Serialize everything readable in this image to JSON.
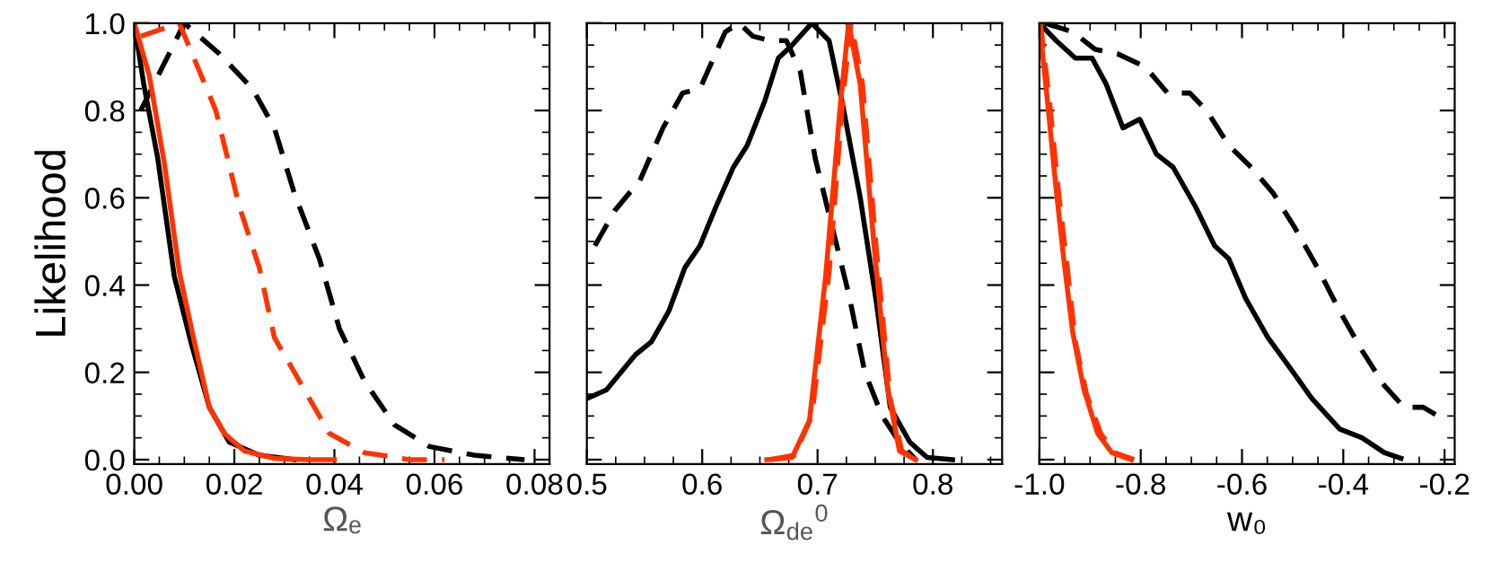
{
  "chart_data": [
    {
      "type": "line",
      "xlabel": "Ωₑ",
      "ylabel": "Likelihood",
      "xlim": [
        0,
        0.083
      ],
      "ylim": [
        -0.01,
        1.0
      ],
      "xticks": [
        {
          "value": 0,
          "label": "0.00"
        },
        0.02,
        0.04,
        0.06,
        0.08
      ],
      "yticks": [
        {
          "value": 0,
          "label": "0.0"
        },
        0.2,
        0.4,
        0.6,
        0.8,
        {
          "value": 1,
          "label": "1.0"
        }
      ],
      "grid": false,
      "legend": false,
      "series": [
        {
          "color": "#000000",
          "line_style": "dashed",
          "x": [
            0.0013,
            0.01,
            0.017,
            0.0236,
            0.028,
            0.032,
            0.037,
            0.041,
            0.046,
            0.052,
            0.059,
            0.068,
            0.078
          ],
          "values": [
            0.8,
            1.0,
            0.93,
            0.85,
            0.76,
            0.61,
            0.46,
            0.3,
            0.18,
            0.08,
            0.03,
            0.01,
            0.0
          ]
        },
        {
          "color": "#ff3300",
          "line_style": "dashed",
          "x": [
            0.0013,
            0.009,
            0.0163,
            0.021,
            0.025,
            0.028,
            0.034,
            0.039,
            0.046,
            0.055,
            0.062
          ],
          "values": [
            0.97,
            1.0,
            0.8,
            0.58,
            0.44,
            0.28,
            0.16,
            0.06,
            0.016,
            0.0,
            0.0
          ]
        },
        {
          "color": "#000000",
          "line_style": "solid",
          "x": [
            0,
            0.0019,
            0.0047,
            0.008,
            0.0113,
            0.015,
            0.019,
            0.025,
            0.032
          ],
          "values": [
            1.0,
            0.86,
            0.69,
            0.42,
            0.27,
            0.12,
            0.04,
            0.01,
            0.0
          ]
        },
        {
          "color": "#ff3300",
          "line_style": "solid",
          "x": [
            0,
            0.003,
            0.006,
            0.009,
            0.012,
            0.015,
            0.018,
            0.022,
            0.028,
            0.035,
            0.04
          ],
          "values": [
            1.0,
            0.88,
            0.68,
            0.43,
            0.27,
            0.12,
            0.06,
            0.02,
            0.003,
            0.0,
            0.0
          ]
        }
      ]
    },
    {
      "type": "line",
      "xlabel": "Ω$_{de}$$^{0}$",
      "xlim": [
        0.5,
        0.86
      ],
      "ylim": [
        -0.01,
        1.0
      ],
      "xticks": [
        0.5,
        0.6,
        0.7,
        0.8
      ],
      "yticks": [
        {
          "value": 0,
          "label": null
        },
        {
          "value": 0.2,
          "label": null
        },
        {
          "value": 0.4,
          "label": null
        },
        {
          "value": 0.6,
          "label": null
        },
        {
          "value": 0.8,
          "label": null
        },
        {
          "value": 1,
          "label": null
        }
      ],
      "tick_labels": "x",
      "grid": false,
      "legend": false,
      "series": [
        {
          "color": "#000000",
          "line_style": "dashed",
          "x": [
            0.507,
            0.524,
            0.546,
            0.566,
            0.583,
            0.598,
            0.62,
            0.632,
            0.644,
            0.659,
            0.673,
            0.685,
            0.698,
            0.712,
            0.727,
            0.741,
            0.756,
            0.771,
            0.785
          ],
          "values": [
            0.49,
            0.57,
            0.64,
            0.76,
            0.84,
            0.85,
            0.98,
            1.0,
            0.97,
            0.96,
            0.96,
            0.89,
            0.69,
            0.54,
            0.38,
            0.2,
            0.1,
            0.04,
            0.0
          ]
        },
        {
          "color": "#000000",
          "line_style": "solid",
          "x": [
            0.5,
            0.517,
            0.542,
            0.556,
            0.571,
            0.585,
            0.598,
            0.612,
            0.627,
            0.639,
            0.654,
            0.666,
            0.678,
            0.695,
            0.71,
            0.722,
            0.737,
            0.751,
            0.763,
            0.78,
            0.795,
            0.817
          ],
          "values": [
            0.14,
            0.16,
            0.24,
            0.27,
            0.34,
            0.44,
            0.49,
            0.58,
            0.67,
            0.72,
            0.82,
            0.92,
            0.95,
            1.0,
            0.96,
            0.81,
            0.6,
            0.36,
            0.12,
            0.04,
            0.005,
            0.0
          ]
        },
        {
          "color": "#ff3300",
          "line_style": "dashed",
          "x": [
            0.659,
            0.68,
            0.695,
            0.71,
            0.722,
            0.729,
            0.739,
            0.751,
            0.763,
            0.773,
            0.785
          ],
          "values": [
            0.0,
            0.01,
            0.1,
            0.43,
            0.83,
            1.0,
            0.86,
            0.48,
            0.14,
            0.02,
            0.0
          ]
        },
        {
          "color": "#ff3300",
          "line_style": "solid",
          "x": [
            0.656,
            0.678,
            0.693,
            0.707,
            0.72,
            0.727,
            0.737,
            0.749,
            0.761,
            0.771,
            0.785
          ],
          "values": [
            0.0,
            0.005,
            0.09,
            0.42,
            0.82,
            1.0,
            0.86,
            0.49,
            0.16,
            0.02,
            0.0
          ]
        }
      ]
    },
    {
      "type": "line",
      "xlabel": "w₀",
      "xlim": [
        -1.0,
        -0.18
      ],
      "ylim": [
        -0.01,
        1.0
      ],
      "xticks": [
        {
          "value": -1.0,
          "label": "-1.0"
        },
        {
          "value": -0.8,
          "label": "-0.8"
        },
        {
          "value": -0.6,
          "label": "-0.6"
        },
        {
          "value": -0.4,
          "label": "-0.4"
        },
        {
          "value": -0.2,
          "label": "-0.2"
        }
      ],
      "yticks": [
        {
          "value": 0,
          "label": null
        },
        {
          "value": 0.2,
          "label": null
        },
        {
          "value": 0.4,
          "label": null
        },
        {
          "value": 0.6,
          "label": null
        },
        {
          "value": 0.8,
          "label": null
        },
        {
          "value": 1,
          "label": null
        }
      ],
      "tick_labels": "x",
      "grid": false,
      "legend": false,
      "series": [
        {
          "color": "#000000",
          "line_style": "dashed",
          "x": [
            -0.989,
            -0.934,
            -0.89,
            -0.846,
            -0.791,
            -0.747,
            -0.703,
            -0.67,
            -0.626,
            -0.582,
            -0.538,
            -0.495,
            -0.451,
            -0.407,
            -0.363,
            -0.319,
            -0.28,
            -0.242,
            -0.198
          ],
          "values": [
            1.0,
            0.98,
            0.94,
            0.93,
            0.9,
            0.84,
            0.84,
            0.8,
            0.72,
            0.67,
            0.61,
            0.53,
            0.44,
            0.34,
            0.25,
            0.17,
            0.12,
            0.12,
            0.09
          ]
        },
        {
          "color": "#000000",
          "line_style": "solid",
          "x": [
            -1.0,
            -0.967,
            -0.929,
            -0.896,
            -0.868,
            -0.835,
            -0.802,
            -0.769,
            -0.736,
            -0.692,
            -0.654,
            -0.626,
            -0.593,
            -0.549,
            -0.505,
            -0.462,
            -0.407,
            -0.363,
            -0.319,
            -0.286
          ],
          "values": [
            1.0,
            0.96,
            0.92,
            0.92,
            0.86,
            0.76,
            0.78,
            0.7,
            0.67,
            0.58,
            0.49,
            0.46,
            0.37,
            0.28,
            0.21,
            0.14,
            0.07,
            0.05,
            0.016,
            0.003
          ]
        },
        {
          "color": "#ff3300",
          "line_style": "dashed",
          "x": [
            -0.998,
            -0.98,
            -0.962,
            -0.945,
            -0.929,
            -0.907,
            -0.879,
            -0.852,
            -0.813
          ],
          "values": [
            1.0,
            0.82,
            0.61,
            0.44,
            0.27,
            0.15,
            0.06,
            0.016,
            0.0
          ]
        },
        {
          "color": "#ff3300",
          "line_style": "solid",
          "x": [
            -1.0,
            -0.984,
            -0.967,
            -0.951,
            -0.934,
            -0.912,
            -0.885,
            -0.857,
            -0.819
          ],
          "values": [
            1.0,
            0.82,
            0.62,
            0.45,
            0.29,
            0.16,
            0.06,
            0.016,
            0.0
          ]
        }
      ]
    }
  ]
}
